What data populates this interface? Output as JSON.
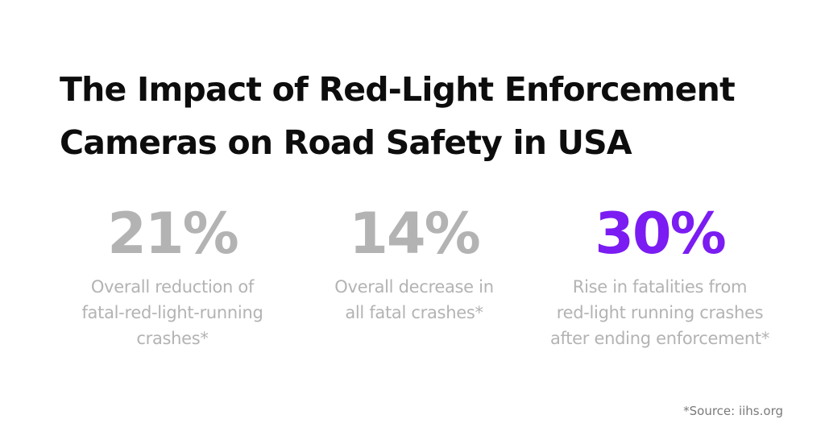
{
  "title": {
    "line1": "The Impact of Red-Light Enforcement",
    "line2": "Cameras on Road Safety in USA"
  },
  "stats": [
    {
      "value": "21%",
      "description": [
        "Overall reduction of",
        "fatal-red-light-running",
        "crashes*"
      ],
      "color": "#b3b3b3"
    },
    {
      "value": "14%",
      "description": [
        "Overall decrease in",
        "all fatal crashes*"
      ],
      "color": "#b3b3b3"
    },
    {
      "value": "30%",
      "description": [
        "Rise in fatalities from",
        "red-light running crashes",
        "after ending enforcement*"
      ],
      "color": "#7b1cf2"
    }
  ],
  "source": "*Source: iihs.org"
}
